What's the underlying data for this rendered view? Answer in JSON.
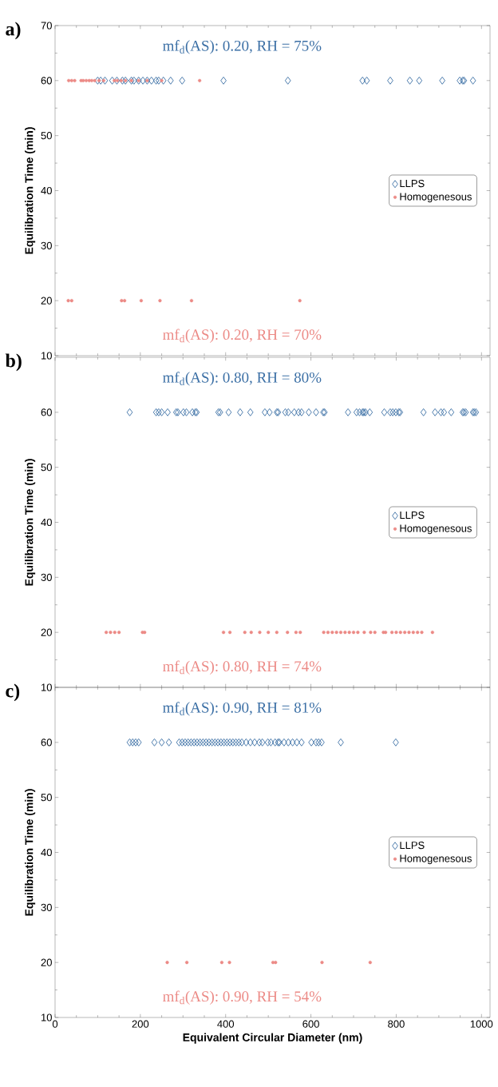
{
  "chart_data": [
    {
      "type": "scatter",
      "title": "a)",
      "ylabel": "Equilibration Time (min)",
      "xlim": [
        0,
        1020
      ],
      "ylim": [
        10,
        70
      ],
      "xticks": [
        0,
        200,
        400,
        600,
        800,
        1000
      ],
      "yticks": [
        10,
        20,
        30,
        40,
        50,
        60,
        70
      ],
      "tick_labels": "y",
      "legend": "right",
      "annotations": [
        "mf$_{d}$(AS): 0.20, RH = 75%",
        "mf$_{d}$(AS): 0.20, RH = 70%"
      ],
      "series": [
        {
          "name": "LLPS",
          "color": "#3b6fa5",
          "marker": "diamond",
          "x": [
            100,
            107,
            117,
            134,
            145,
            158,
            165,
            179,
            185,
            196,
            206,
            216,
            226,
            237,
            243,
            254,
            271,
            298,
            395,
            546,
            721,
            731,
            786,
            832,
            854,
            908,
            949,
            956,
            959,
            980
          ],
          "values": [
            60,
            60,
            60,
            60,
            60,
            60,
            60,
            60,
            60,
            60,
            60,
            60,
            60,
            60,
            60,
            60,
            60,
            60,
            60,
            60,
            60,
            60,
            60,
            60,
            60,
            60,
            60,
            60,
            60,
            60
          ]
        },
        {
          "name": "Homogenesous",
          "color": "#ec8a86",
          "marker": "circle",
          "x": [
            32,
            39,
            46,
            61,
            66,
            73,
            80,
            86,
            93,
            103,
            114,
            139,
            146,
            155,
            165,
            179,
            196,
            216,
            250,
            339,
            31,
            39,
            156,
            163,
            202,
            246,
            320,
            574
          ],
          "values": [
            60,
            60,
            60,
            60,
            60,
            60,
            60,
            60,
            60,
            60,
            60,
            60,
            60,
            60,
            60,
            60,
            60,
            60,
            60,
            60,
            20,
            20,
            20,
            20,
            20,
            20,
            20,
            20
          ]
        }
      ]
    },
    {
      "type": "scatter",
      "title": "b)",
      "ylabel": "Equilibration Time (min)",
      "xlim": [
        0,
        1020
      ],
      "ylim": [
        10,
        70
      ],
      "xticks": [
        0,
        200,
        400,
        600,
        800,
        1000
      ],
      "yticks": [
        10,
        20,
        30,
        40,
        50,
        60
      ],
      "tick_labels": "y",
      "legend": "right",
      "annotations": [
        "mf$_{d}$(AS): 0.80, RH = 80%",
        "mf$_{d}$(AS): 0.80, RH = 74%"
      ],
      "series": [
        {
          "name": "LLPS",
          "color": "#3b6fa5",
          "marker": "diamond",
          "x": [
            175,
            237,
            243,
            250,
            264,
            284,
            288,
            301,
            308,
            322,
            329,
            332,
            383,
            387,
            407,
            434,
            458,
            492,
            503,
            520,
            523,
            540,
            547,
            561,
            571,
            578,
            595,
            612,
            629,
            632,
            687,
            707,
            714,
            721,
            724,
            728,
            738,
            772,
            786,
            792,
            799,
            806,
            809,
            864,
            891,
            905,
            912,
            929,
            956,
            959,
            963,
            980,
            983,
            987
          ],
          "values": [
            60,
            60,
            60,
            60,
            60,
            60,
            60,
            60,
            60,
            60,
            60,
            60,
            60,
            60,
            60,
            60,
            60,
            60,
            60,
            60,
            60,
            60,
            60,
            60,
            60,
            60,
            60,
            60,
            60,
            60,
            60,
            60,
            60,
            60,
            60,
            60,
            60,
            60,
            60,
            60,
            60,
            60,
            60,
            60,
            60,
            60,
            60,
            60,
            60,
            60,
            60,
            60,
            60,
            60
          ]
        },
        {
          "name": "Homogenesous",
          "color": "#ec8a86",
          "marker": "circle",
          "x": [
            120,
            130,
            140,
            150,
            205,
            210,
            395,
            410,
            445,
            460,
            480,
            500,
            520,
            545,
            565,
            575,
            630,
            640,
            650,
            660,
            670,
            680,
            690,
            700,
            710,
            725,
            740,
            750,
            770,
            775,
            790,
            800,
            810,
            820,
            830,
            840,
            850,
            860,
            885
          ],
          "values": [
            20,
            20,
            20,
            20,
            20,
            20,
            20,
            20,
            20,
            20,
            20,
            20,
            20,
            20,
            20,
            20,
            20,
            20,
            20,
            20,
            20,
            20,
            20,
            20,
            20,
            20,
            20,
            20,
            20,
            20,
            20,
            20,
            20,
            20,
            20,
            20,
            20,
            20,
            20
          ]
        }
      ]
    },
    {
      "type": "scatter",
      "title": "c)",
      "xlabel": "Equivalent Circular Diameter (nm)",
      "ylabel": "Equilibration Time (min)",
      "xlim": [
        0,
        1020
      ],
      "ylim": [
        10,
        70
      ],
      "xticks": [
        0,
        200,
        400,
        600,
        800,
        1000
      ],
      "yticks": [
        10,
        20,
        30,
        40,
        50,
        60
      ],
      "legend": "right",
      "annotations": [
        "mf$_{d}$(AS): 0.90, RH = 81%",
        "mf$_{d}$(AS): 0.90, RH = 54%"
      ],
      "series": [
        {
          "name": "LLPS",
          "color": "#3b6fa5",
          "marker": "diamond",
          "x": [
            175,
            182,
            189,
            196,
            233,
            250,
            267,
            291,
            298,
            305,
            312,
            319,
            326,
            333,
            340,
            347,
            354,
            361,
            368,
            375,
            382,
            389,
            396,
            403,
            410,
            417,
            424,
            431,
            438,
            448,
            458,
            468,
            479,
            486,
            499,
            506,
            516,
            523,
            526,
            537,
            547,
            557,
            567,
            578,
            601,
            612,
            618,
            625,
            670,
            799
          ],
          "values": [
            60,
            60,
            60,
            60,
            60,
            60,
            60,
            60,
            60,
            60,
            60,
            60,
            60,
            60,
            60,
            60,
            60,
            60,
            60,
            60,
            60,
            60,
            60,
            60,
            60,
            60,
            60,
            60,
            60,
            60,
            60,
            60,
            60,
            60,
            60,
            60,
            60,
            60,
            60,
            60,
            60,
            60,
            60,
            60,
            60,
            60,
            60,
            60,
            60,
            60
          ]
        },
        {
          "name": "Homogenesous",
          "color": "#ec8a86",
          "marker": "circle",
          "x": [
            263,
            309,
            391,
            409,
            511,
            517,
            626,
            739
          ],
          "values": [
            20,
            20,
            20,
            20,
            20,
            20,
            20,
            20
          ]
        }
      ]
    }
  ]
}
